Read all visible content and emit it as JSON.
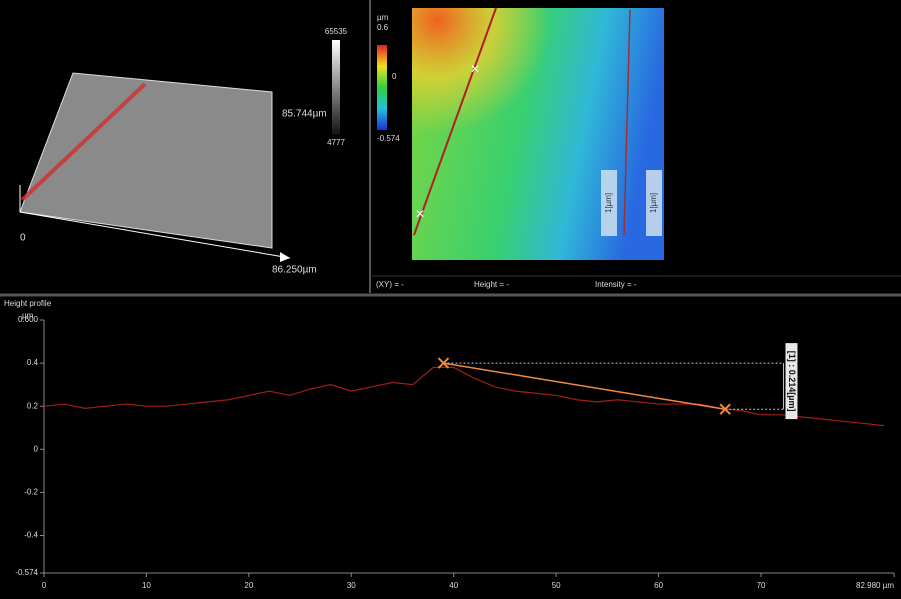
{
  "view3d": {
    "scale_max": "65535",
    "scale_min": "4777",
    "y_extent": "85.744µm",
    "origin": "0",
    "x_extent": "86.250µm"
  },
  "colormap": {
    "unit": "µm",
    "max": "0.6",
    "mid": "0",
    "min": "-0.574",
    "line_labels": [
      "1[µm]",
      "1[µm]"
    ]
  },
  "status": {
    "xy": "(XY) = -",
    "height": "Height = -",
    "intensity": "Intensity = -"
  },
  "chart_data": {
    "type": "line",
    "title": "Height profile",
    "y_unit": "µm",
    "x": [
      0,
      2,
      4,
      6,
      8,
      10,
      12,
      14,
      16,
      18,
      20,
      22,
      24,
      26,
      28,
      30,
      32,
      34,
      36,
      38,
      40,
      42,
      44,
      46,
      48,
      50,
      52,
      54,
      56,
      58,
      60,
      62,
      64,
      66,
      68,
      70,
      72,
      74,
      76,
      78,
      80,
      82
    ],
    "values": [
      0.2,
      0.21,
      0.19,
      0.2,
      0.21,
      0.2,
      0.2,
      0.21,
      0.22,
      0.23,
      0.25,
      0.27,
      0.25,
      0.28,
      0.3,
      0.27,
      0.29,
      0.31,
      0.3,
      0.38,
      0.38,
      0.33,
      0.29,
      0.27,
      0.26,
      0.25,
      0.23,
      0.22,
      0.23,
      0.22,
      0.21,
      0.21,
      0.21,
      0.19,
      0.18,
      0.16,
      0.16,
      0.15,
      0.14,
      0.13,
      0.12,
      0.11
    ],
    "color": "#a01e14",
    "xlim": [
      0,
      82.98
    ],
    "xticks": [
      0,
      10,
      20,
      30,
      40,
      50,
      60,
      70,
      {
        "value": 82.98,
        "label": "82.980 µm"
      }
    ],
    "ylim": [
      -0.574,
      0.6
    ],
    "yticks": [
      {
        "value": 0.6,
        "label": "0.600"
      },
      0.4,
      0.2,
      0,
      -0.2,
      -0.4,
      -0.574
    ],
    "markers": [
      {
        "x": 39,
        "y": 0.4
      },
      {
        "x": 66.5,
        "y": 0.186
      }
    ],
    "marker_color": "#f08a3c",
    "annotation": "[1] : 0.214[µm]"
  }
}
